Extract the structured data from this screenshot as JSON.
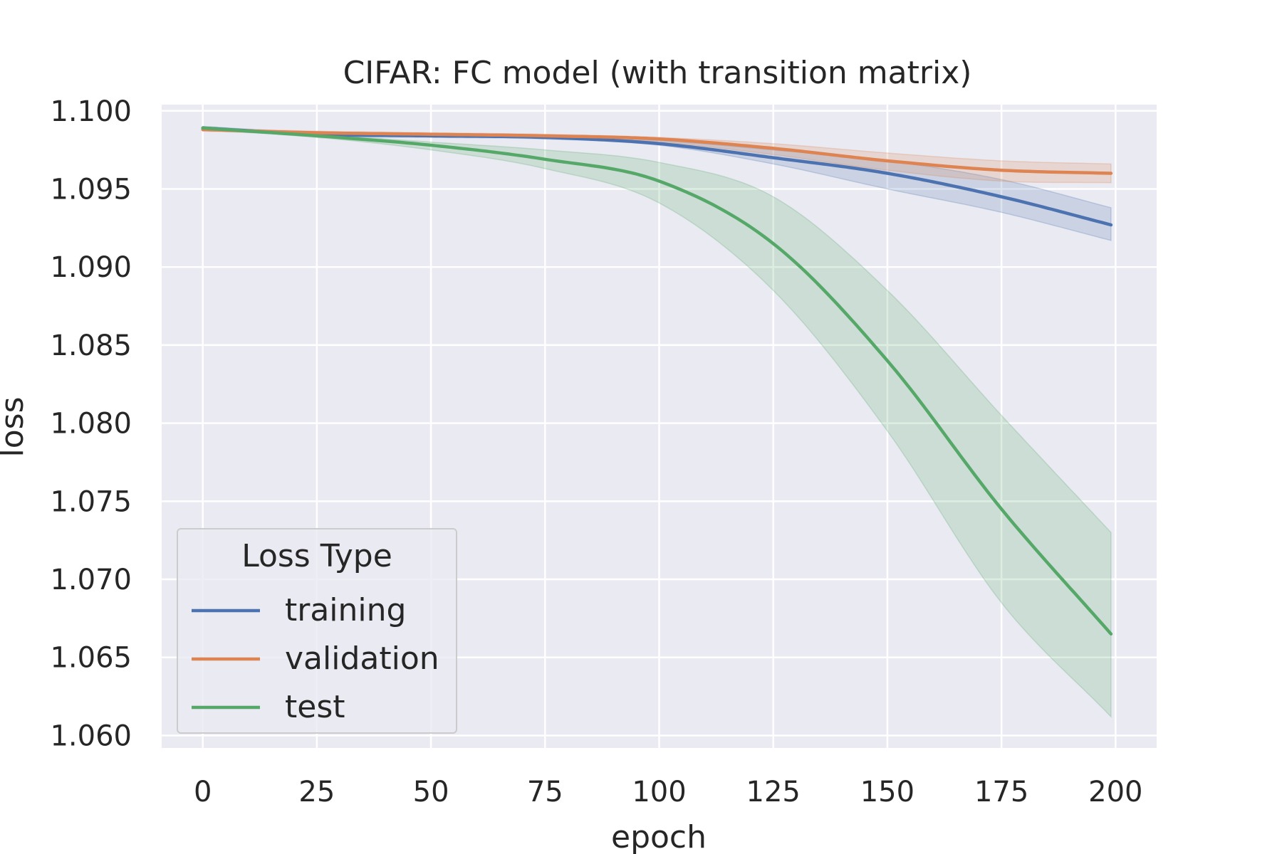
{
  "chart_data": {
    "type": "line",
    "title": "CIFAR: FC model (with transition matrix)",
    "xlabel": "epoch",
    "ylabel": "loss",
    "xlim": [
      -9,
      209
    ],
    "ylim": [
      1.0592,
      1.1004
    ],
    "xticks": [
      0,
      25,
      50,
      75,
      100,
      125,
      150,
      175,
      200
    ],
    "xtick_labels": [
      "0",
      "25",
      "50",
      "75",
      "100",
      "125",
      "150",
      "175",
      "200"
    ],
    "yticks": [
      1.06,
      1.065,
      1.07,
      1.075,
      1.08,
      1.085,
      1.09,
      1.095,
      1.1
    ],
    "ytick_labels": [
      "1.060",
      "1.065",
      "1.070",
      "1.075",
      "1.080",
      "1.085",
      "1.090",
      "1.095",
      "1.100"
    ],
    "grid": true,
    "legend": {
      "title": "Loss Type",
      "position": "lower-left"
    },
    "x": [
      0,
      25,
      50,
      75,
      100,
      125,
      150,
      175,
      199
    ],
    "series": [
      {
        "name": "training",
        "color": "#4c72b0",
        "values": [
          1.0989,
          1.0985,
          1.0984,
          1.0983,
          1.0979,
          1.097,
          1.096,
          1.0945,
          1.0927
        ],
        "lower": [
          1.0988,
          1.0984,
          1.0983,
          1.0982,
          1.0978,
          1.0966,
          1.095,
          1.0935,
          1.0917
        ],
        "upper": [
          1.099,
          1.0986,
          1.0985,
          1.0984,
          1.0981,
          1.0975,
          1.0968,
          1.0956,
          1.0938
        ]
      },
      {
        "name": "validation",
        "color": "#dd8452",
        "values": [
          1.0988,
          1.0986,
          1.0985,
          1.0984,
          1.0982,
          1.0976,
          1.0968,
          1.0962,
          1.096
        ],
        "lower": [
          1.0987,
          1.0985,
          1.0984,
          1.0983,
          1.098,
          1.0972,
          1.0962,
          1.0955,
          1.0954
        ],
        "upper": [
          1.0989,
          1.0987,
          1.0986,
          1.0985,
          1.0983,
          1.0979,
          1.0973,
          1.0968,
          1.0966
        ]
      },
      {
        "name": "test",
        "color": "#55a868",
        "values": [
          1.0989,
          1.0984,
          1.0978,
          1.0969,
          1.0955,
          1.0915,
          1.084,
          1.0745,
          1.0665
        ],
        "lower": [
          1.0988,
          1.0983,
          1.0975,
          1.0963,
          1.0941,
          1.0885,
          1.0795,
          1.0685,
          1.0612
        ],
        "upper": [
          1.099,
          1.0985,
          1.098,
          1.0975,
          1.0967,
          1.0945,
          1.0885,
          1.0805,
          1.073
        ]
      }
    ]
  }
}
